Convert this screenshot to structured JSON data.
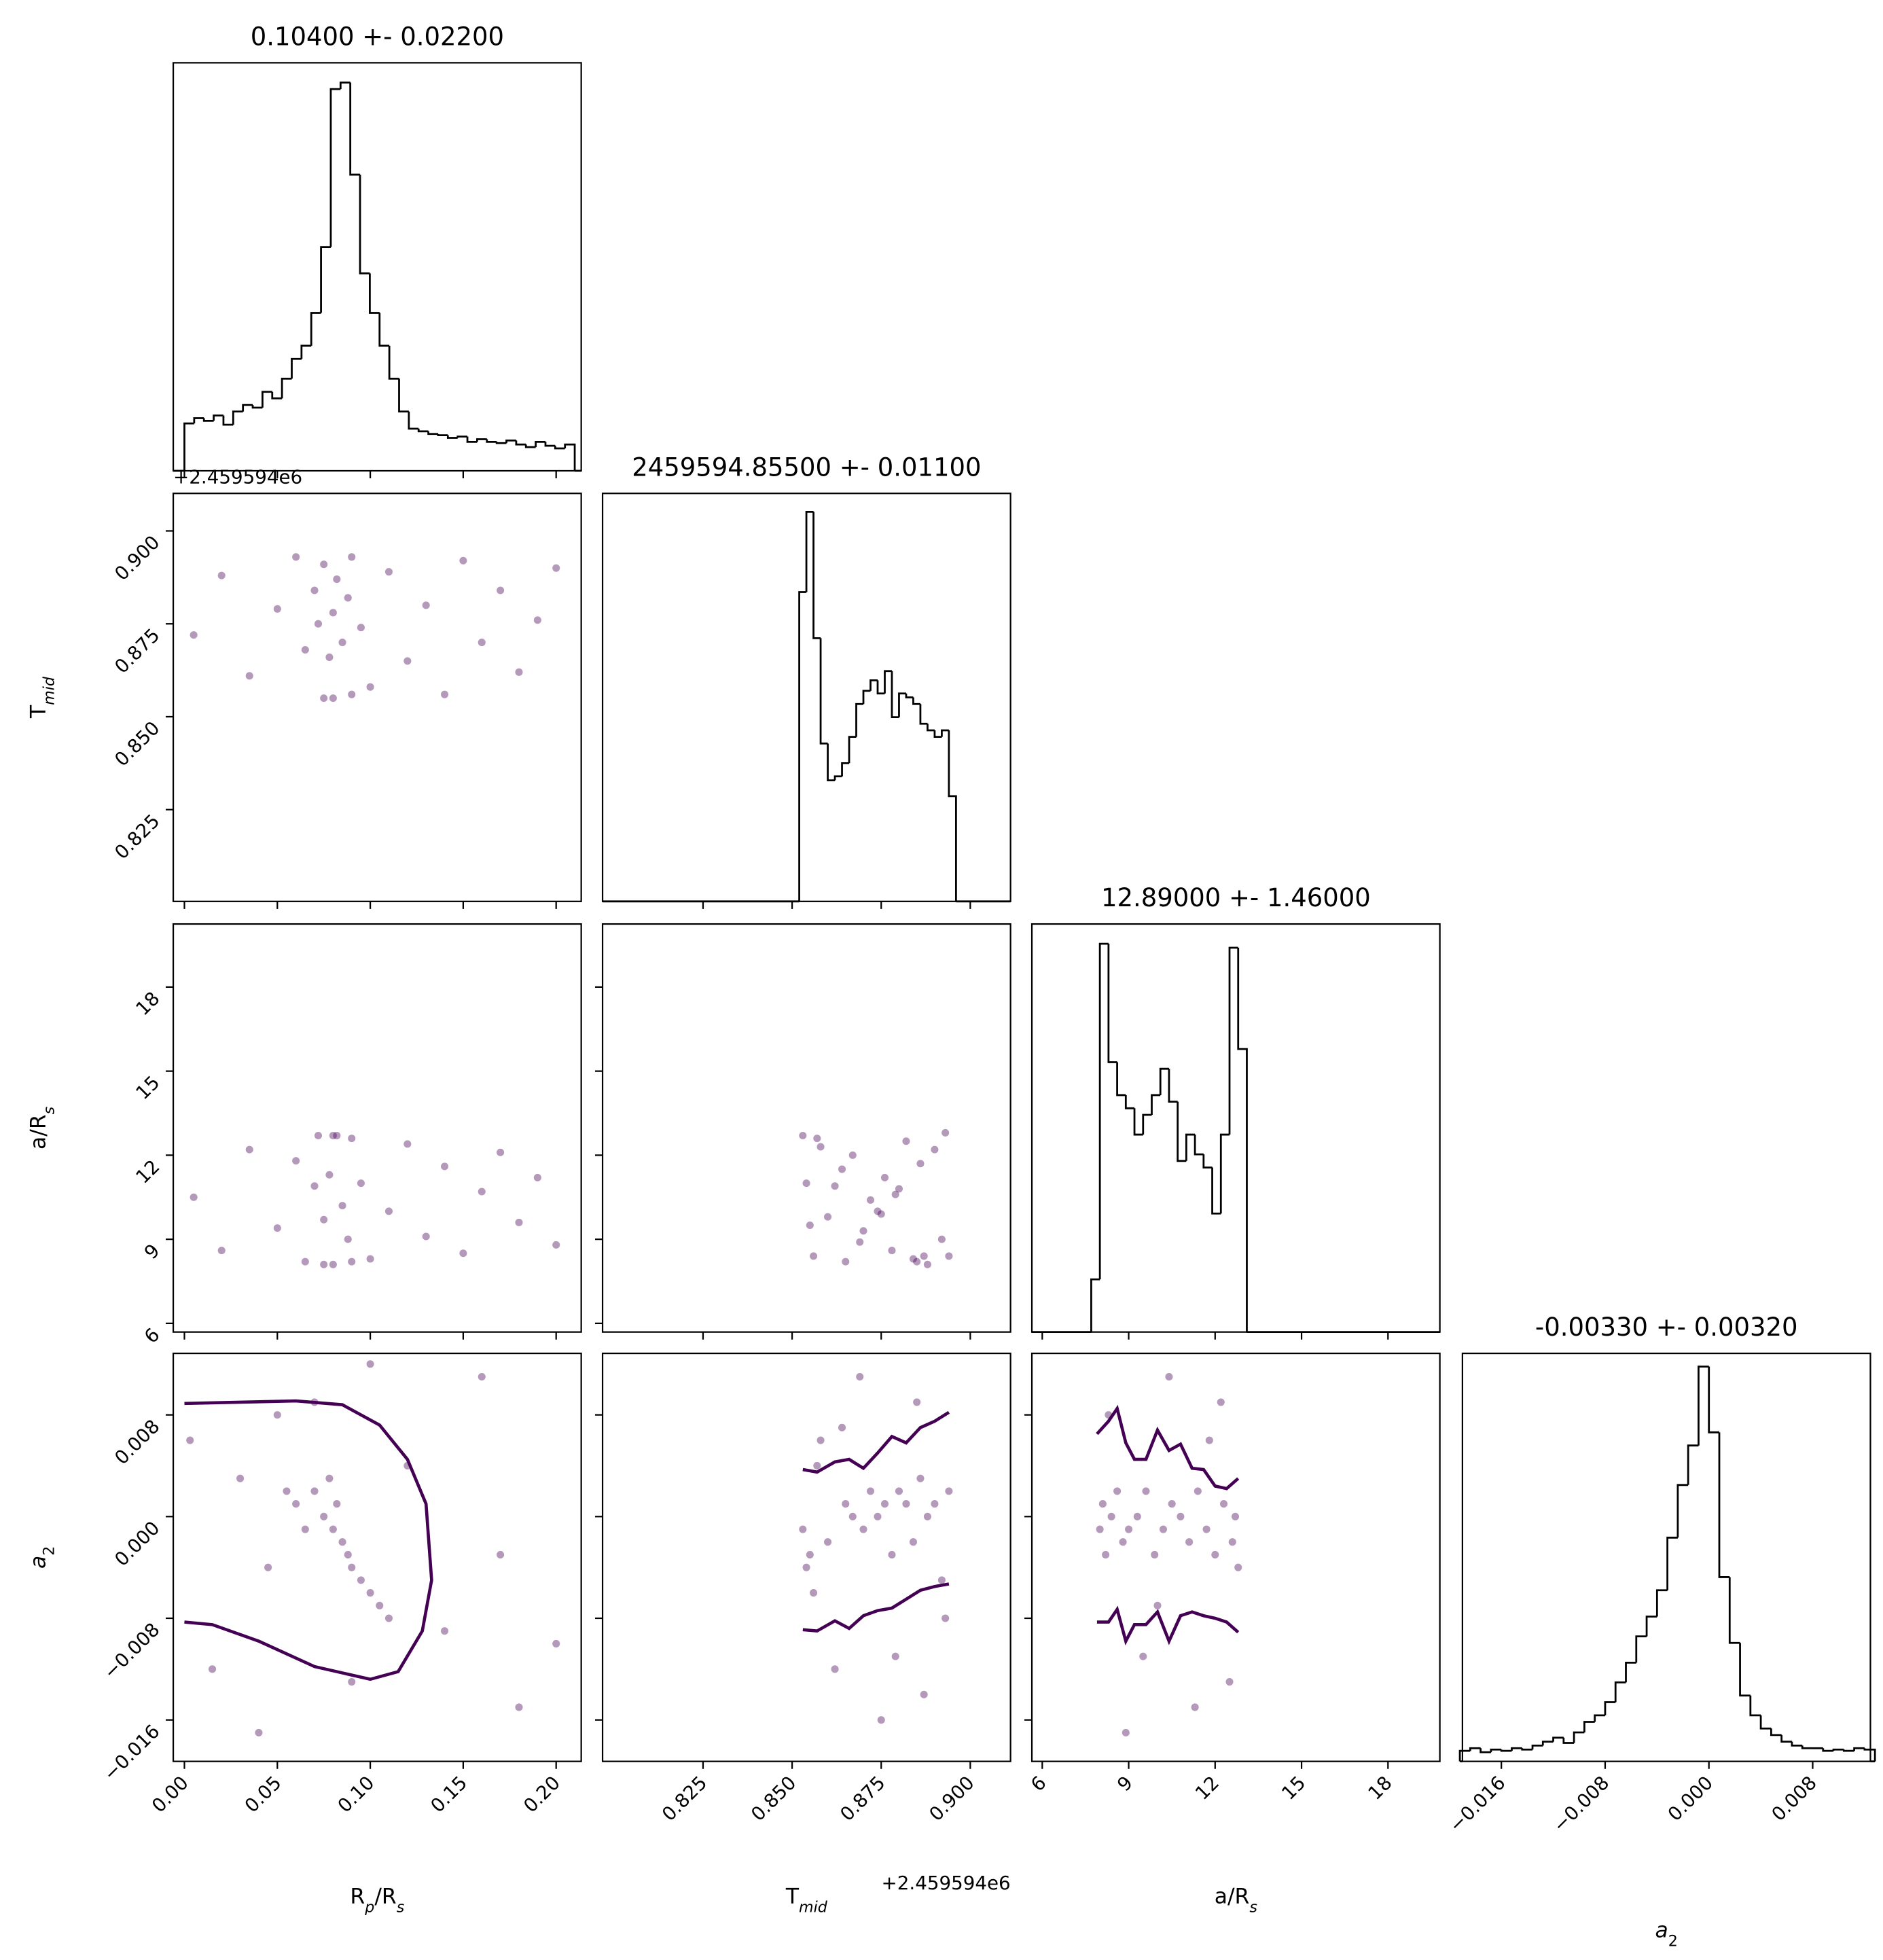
{
  "chart_data": [
    {
      "type": "histogram",
      "title": "0.10400 +- 0.02200",
      "color": "#000000",
      "bins": [
        0,
        0.00525,
        0.0105,
        0.01575,
        0.021,
        0.02625,
        0.0315,
        0.03675,
        0.042,
        0.04725,
        0.0525,
        0.05775,
        0.063,
        0.06825,
        0.0735,
        0.07875,
        0.084,
        0.08925,
        0.0945,
        0.09975,
        0.105,
        0.11025,
        0.1155,
        0.12075,
        0.126,
        0.13125,
        0.1365,
        0.14175,
        0.147,
        0.15225,
        0.1575,
        0.16275,
        0.168,
        0.17325,
        0.1785,
        0.18375,
        0.189,
        0.19425,
        0.1995,
        0.20475,
        0.21
      ],
      "values": [
        36,
        40,
        38,
        42,
        35,
        45,
        50,
        48,
        60,
        55,
        70,
        85,
        95,
        120,
        170,
        290,
        295,
        225,
        150,
        120,
        95,
        70,
        45,
        32,
        30,
        28,
        27,
        25,
        26,
        22,
        24,
        22,
        21,
        23,
        20,
        18,
        22,
        19,
        17,
        20
      ],
      "xlim": [
        -0.006,
        0.2135
      ],
      "xticks": [
        0,
        0.05,
        0.1,
        0.15,
        0.2
      ],
      "ylim": [
        0,
        310
      ]
    },
    {
      "type": "scatter",
      "color": "#440154",
      "yoffset": "+2.459594e6",
      "ylabel": [
        {
          "text": "T"
        },
        {
          "text": "mid",
          "sub": true,
          "italic": true
        }
      ],
      "x": [
        0.005,
        0.02,
        0.035,
        0.05,
        0.06,
        0.065,
        0.07,
        0.072,
        0.075,
        0.078,
        0.08,
        0.082,
        0.085,
        0.088,
        0.09,
        0.095,
        0.1,
        0.11,
        0.12,
        0.13,
        0.14,
        0.15,
        0.16,
        0.17,
        0.18,
        0.19,
        0.2,
        0.075,
        0.08,
        0.09
      ],
      "y": [
        0.872,
        0.888,
        0.861,
        0.879,
        0.893,
        0.868,
        0.884,
        0.875,
        0.891,
        0.866,
        0.878,
        0.887,
        0.87,
        0.882,
        0.893,
        0.874,
        0.858,
        0.889,
        0.865,
        0.88,
        0.856,
        0.892,
        0.87,
        0.884,
        0.862,
        0.876,
        0.89,
        0.855,
        0.855,
        0.856
      ],
      "xlim": [
        -0.006,
        0.2135
      ],
      "xticks": [
        0,
        0.05,
        0.1,
        0.15,
        0.2
      ],
      "ylim": [
        0.8003,
        0.9101
      ],
      "yticks": [
        0.825,
        {
          "value": 0.85,
          "label": "0.850"
        },
        0.875,
        {
          "value": 0.9,
          "label": "0.900"
        }
      ]
    },
    {
      "type": "histogram",
      "title": "2459594.85500 +- 0.01100",
      "color": "#000000",
      "bins": [
        0.852,
        0.854,
        0.856,
        0.858,
        0.86,
        0.862,
        0.864,
        0.866,
        0.868,
        0.87,
        0.872,
        0.874,
        0.876,
        0.878,
        0.88,
        0.882,
        0.884,
        0.886,
        0.888,
        0.89,
        0.892,
        0.894,
        0.896
      ],
      "values": [
        235,
        296,
        200,
        120,
        92,
        95,
        105,
        125,
        150,
        160,
        168,
        158,
        175,
        140,
        158,
        155,
        150,
        135,
        130,
        125,
        130,
        80
      ],
      "xlim": [
        0.7968,
        0.9113
      ],
      "xticks": [
        0.825,
        0.85,
        0.875,
        0.9
      ],
      "ylim": [
        0,
        310
      ]
    },
    {
      "type": "scatter",
      "color": "#440154",
      "ylabel": [
        {
          "text": "a/R"
        },
        {
          "text": "s",
          "sub": true,
          "italic": true
        }
      ],
      "x": [
        0.005,
        0.02,
        0.035,
        0.05,
        0.06,
        0.065,
        0.07,
        0.072,
        0.075,
        0.078,
        0.08,
        0.082,
        0.085,
        0.088,
        0.09,
        0.095,
        0.1,
        0.11,
        0.12,
        0.13,
        0.14,
        0.15,
        0.16,
        0.17,
        0.18,
        0.19,
        0.2,
        0.075,
        0.08,
        0.09
      ],
      "y": [
        10.5,
        8.6,
        12.2,
        9.4,
        11.8,
        8.2,
        10.9,
        12.7,
        9.7,
        11.3,
        8.1,
        12.7,
        10.2,
        9.0,
        12.6,
        11.0,
        8.3,
        10.0,
        12.4,
        9.1,
        11.6,
        8.5,
        10.7,
        12.1,
        9.6,
        11.2,
        8.8,
        8.1,
        12.7,
        8.2
      ],
      "xlim": [
        -0.006,
        0.2135
      ],
      "xticks": [
        0,
        0.05,
        0.1,
        0.15,
        0.2
      ],
      "ylim": [
        5.69,
        20.25
      ],
      "yticks": [
        6,
        9,
        12,
        15,
        18
      ]
    },
    {
      "type": "scatter",
      "color": "#440154",
      "x": [
        0.853,
        0.854,
        0.856,
        0.858,
        0.86,
        0.862,
        0.865,
        0.867,
        0.87,
        0.872,
        0.874,
        0.876,
        0.878,
        0.88,
        0.882,
        0.884,
        0.886,
        0.888,
        0.89,
        0.892,
        0.894,
        0.855,
        0.875,
        0.885,
        0.893,
        0.864,
        0.879,
        0.869,
        0.887,
        0.857
      ],
      "y": [
        12.7,
        11.0,
        8.4,
        12.3,
        9.8,
        10.9,
        8.2,
        12.0,
        9.3,
        10.4,
        10.0,
        11.2,
        8.6,
        10.8,
        12.5,
        8.3,
        11.7,
        8.1,
        12.2,
        9.0,
        8.4,
        9.5,
        9.9,
        8.2,
        12.8,
        11.5,
        10.6,
        8.9,
        8.4,
        12.6
      ],
      "xlim": [
        0.7968,
        0.9113
      ],
      "xticks": [
        0.825,
        0.85,
        0.875,
        0.9
      ],
      "ylim": [
        5.69,
        20.25
      ],
      "yticks": [
        6,
        9,
        12,
        15,
        18
      ]
    },
    {
      "type": "histogram",
      "title": "12.89000 +- 1.46000",
      "color": "#000000",
      "bins": [
        7.7,
        8.0,
        8.3,
        8.6,
        8.9,
        9.2,
        9.5,
        9.8,
        10.1,
        10.4,
        10.7,
        11.0,
        11.3,
        11.6,
        11.9,
        12.2,
        12.5,
        12.8,
        13.1
      ],
      "values": [
        40,
        295,
        205,
        180,
        170,
        150,
        165,
        180,
        200,
        175,
        130,
        150,
        135,
        125,
        90,
        150,
        292,
        215
      ],
      "xlim": [
        5.64,
        19.8
      ],
      "xticks": [
        6,
        9,
        12,
        15,
        18
      ],
      "ylim": [
        0,
        310
      ]
    },
    {
      "type": "scatter",
      "color": "#440154",
      "xlabel": [
        {
          "text": "R"
        },
        {
          "text": "p",
          "sub": true,
          "italic": true
        },
        {
          "text": "/R"
        },
        {
          "text": "s",
          "sub": true,
          "italic": true
        }
      ],
      "ylabel": [
        {
          "text": "a",
          "italic": true
        },
        {
          "text": "2",
          "sub": true
        }
      ],
      "x": [
        0.003,
        0.015,
        0.03,
        0.045,
        0.055,
        0.06,
        0.065,
        0.07,
        0.075,
        0.078,
        0.08,
        0.082,
        0.085,
        0.088,
        0.09,
        0.095,
        0.1,
        0.105,
        0.11,
        0.12,
        0.14,
        0.16,
        0.18,
        0.2,
        0.04,
        0.07,
        0.09,
        0.1,
        0.05,
        0.17
      ],
      "y": [
        0.006,
        -0.012,
        0.003,
        -0.004,
        0.002,
        0.001,
        -0.001,
        0.002,
        0.0,
        0.003,
        -0.001,
        0.001,
        -0.002,
        -0.003,
        -0.004,
        -0.005,
        -0.006,
        -0.007,
        -0.008,
        0.004,
        -0.009,
        0.011,
        -0.015,
        -0.01,
        -0.017,
        0.009,
        -0.013,
        0.012,
        0.008,
        -0.003
      ],
      "contours": [
        {
          "x": [
            0,
            0.03,
            0.06,
            0.085,
            0.105,
            0.12,
            0.13,
            0.133,
            0.128,
            0.115,
            0.1,
            0.07,
            0.04,
            0.015,
            0
          ],
          "y": [
            0.0089,
            0.009,
            0.0091,
            0.0088,
            0.0072,
            0.0045,
            0.001,
            -0.005,
            -0.009,
            -0.0122,
            -0.0128,
            -0.0118,
            -0.0098,
            -0.0085,
            -0.0083
          ]
        }
      ],
      "xlim": [
        -0.006,
        0.2135
      ],
      "xticks": [
        {
          "value": 0,
          "label": "0.00"
        },
        0.05,
        {
          "value": 0.1,
          "label": "0.10"
        },
        0.15,
        {
          "value": 0.2,
          "label": "0.20"
        }
      ],
      "ylim": [
        -0.01926,
        0.01284
      ],
      "yticks": [
        {
          "value": -0.016,
          "label": "−0.016"
        },
        {
          "value": -0.008,
          "label": "−0.008"
        },
        {
          "value": 0,
          "label": "0.000"
        },
        0.008
      ]
    },
    {
      "type": "scatter",
      "color": "#440154",
      "xoffset": "+2.459594e6",
      "xlabel": [
        {
          "text": "T"
        },
        {
          "text": "mid",
          "sub": true,
          "italic": true
        }
      ],
      "x": [
        0.853,
        0.854,
        0.856,
        0.858,
        0.86,
        0.862,
        0.865,
        0.867,
        0.87,
        0.872,
        0.874,
        0.876,
        0.878,
        0.88,
        0.882,
        0.884,
        0.886,
        0.888,
        0.89,
        0.892,
        0.894,
        0.855,
        0.875,
        0.885,
        0.893,
        0.864,
        0.879,
        0.869,
        0.887,
        0.857
      ],
      "y": [
        -0.001,
        -0.004,
        -0.006,
        0.006,
        -0.002,
        -0.012,
        0.001,
        0.0,
        -0.001,
        0.002,
        0.0,
        0.001,
        -0.003,
        0.002,
        0.001,
        -0.002,
        0.003,
        0.0,
        0.001,
        -0.005,
        0.002,
        -0.003,
        -0.016,
        0.009,
        -0.008,
        0.007,
        -0.011,
        0.011,
        -0.014,
        0.004
      ],
      "contours": [
        {
          "x": [
            0.853,
            0.857,
            0.862,
            0.866,
            0.87,
            0.874,
            0.878,
            0.882,
            0.886,
            0.89,
            0.894
          ],
          "y": [
            0.0037,
            0.0035,
            0.0043,
            0.0045,
            0.0038,
            0.005,
            0.0063,
            0.0058,
            0.007,
            0.0075,
            0.0082
          ]
        },
        {
          "x": [
            0.853,
            0.857,
            0.862,
            0.866,
            0.87,
            0.874,
            0.878,
            0.882,
            0.886,
            0.89,
            0.894
          ],
          "y": [
            -0.0089,
            -0.009,
            -0.0082,
            -0.0088,
            -0.0078,
            -0.0074,
            -0.0072,
            -0.0065,
            -0.0058,
            -0.0055,
            -0.0053
          ]
        }
      ],
      "xlim": [
        0.7968,
        0.9113
      ],
      "xticks": [
        0.825,
        {
          "value": 0.85,
          "label": "0.850"
        },
        0.875,
        {
          "value": 0.9,
          "label": "0.900"
        }
      ],
      "ylim": [
        -0.01926,
        0.01284
      ],
      "yticks": [
        -0.016,
        -0.008,
        0,
        0.008
      ]
    },
    {
      "type": "scatter",
      "color": "#440154",
      "xlabel": [
        {
          "text": "a/R"
        },
        {
          "text": "s",
          "sub": true,
          "italic": true
        }
      ],
      "x": [
        8.0,
        8.1,
        8.2,
        8.4,
        8.6,
        8.8,
        9.0,
        9.3,
        9.6,
        9.9,
        10.2,
        10.5,
        10.8,
        11.1,
        11.4,
        11.7,
        12.0,
        12.3,
        12.6,
        12.7,
        12.8,
        8.3,
        9.5,
        10.4,
        11.3,
        12.2,
        8.9,
        10.0,
        11.8,
        12.5
      ],
      "y": [
        -0.001,
        0.001,
        -0.003,
        0.0,
        0.002,
        -0.002,
        -0.001,
        0.0,
        0.002,
        -0.003,
        -0.001,
        0.001,
        0.0,
        -0.002,
        0.002,
        -0.001,
        -0.003,
        0.001,
        -0.002,
        0.0,
        -0.004,
        0.008,
        -0.011,
        0.011,
        -0.015,
        0.009,
        -0.017,
        -0.007,
        0.006,
        -0.013
      ],
      "contours": [
        {
          "x": [
            7.9,
            8.3,
            8.6,
            8.9,
            9.2,
            9.6,
            10.0,
            10.4,
            10.8,
            11.2,
            11.6,
            12.0,
            12.4,
            12.8
          ],
          "y": [
            0.0065,
            0.0075,
            0.0085,
            0.0058,
            0.0045,
            0.0045,
            0.0068,
            0.0052,
            0.0057,
            0.0038,
            0.0037,
            0.0024,
            0.0022,
            0.003
          ]
        },
        {
          "x": [
            7.9,
            8.3,
            8.6,
            8.9,
            9.2,
            9.6,
            10.0,
            10.4,
            10.8,
            11.2,
            11.6,
            12.0,
            12.4,
            12.8
          ],
          "y": [
            -0.0083,
            -0.0083,
            -0.0073,
            -0.0098,
            -0.0085,
            -0.0085,
            -0.0075,
            -0.0098,
            -0.0078,
            -0.0075,
            -0.0078,
            -0.008,
            -0.0083,
            -0.0091
          ]
        }
      ],
      "xlim": [
        5.64,
        19.8
      ],
      "xticks": [
        6,
        9,
        12,
        15,
        18
      ],
      "ylim": [
        -0.01926,
        0.01284
      ],
      "yticks": [
        -0.016,
        -0.008,
        0,
        0.008
      ]
    },
    {
      "type": "histogram",
      "title": "-0.00330 +- 0.00320",
      "color": "#000000",
      "xlabel": [
        {
          "text": "a",
          "italic": true
        },
        {
          "text": "2",
          "sub": true
        }
      ],
      "bins": [
        -0.0192,
        -0.0184,
        -0.0176,
        -0.0168,
        -0.016,
        -0.0152,
        -0.0144,
        -0.0136,
        -0.0128,
        -0.012,
        -0.0112,
        -0.0104,
        -0.0096,
        -0.0088,
        -0.008,
        -0.0072,
        -0.0064,
        -0.0056,
        -0.0048,
        -0.004,
        -0.0032,
        -0.0024,
        -0.0016,
        -0.0008,
        0,
        0.0008,
        0.0016,
        0.0024,
        0.0032,
        0.004,
        0.0048,
        0.0056,
        0.0064,
        0.0072,
        0.008,
        0.0088,
        0.0096,
        0.0104,
        0.0112,
        0.012,
        0.0128
      ],
      "values": [
        8,
        10,
        7,
        9,
        8,
        10,
        9,
        12,
        15,
        18,
        14,
        22,
        30,
        35,
        45,
        60,
        75,
        95,
        110,
        130,
        170,
        210,
        240,
        300,
        250,
        140,
        90,
        50,
        35,
        25,
        20,
        15,
        12,
        10,
        10,
        8,
        9,
        8,
        10,
        9
      ],
      "xlim": [
        -0.019,
        0.01245
      ],
      "xticks": [
        {
          "value": -0.016,
          "label": "−0.016"
        },
        {
          "value": -0.008,
          "label": "−0.008"
        },
        {
          "value": 0,
          "label": "0.000"
        },
        0.008
      ],
      "ylim": [
        0,
        310
      ]
    }
  ]
}
